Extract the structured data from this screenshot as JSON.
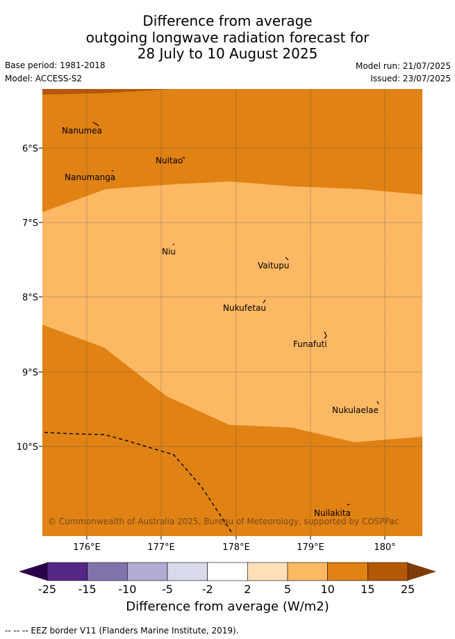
{
  "header": {
    "title_line1": "Difference from average",
    "title_line2": "outgoing longwave radiation forecast for",
    "title_line3": "28 July to 10 August 2025",
    "base_period": "Base period: 1981-2018",
    "model": "Model: ACCESS-S2",
    "model_run": "Model run: 21/07/2025",
    "issued": "Issued: 23/07/2025"
  },
  "map": {
    "lat_labels": [
      "6°S",
      "7°S",
      "8°S",
      "9°S",
      "10°S"
    ],
    "lon_labels": [
      "176°E",
      "177°E",
      "178°E",
      "179°E",
      "180°"
    ],
    "places": [
      "Nanumea",
      "Nuitao",
      "Nanumanga",
      "Niu",
      "Vaitupu",
      "Nukufetau",
      "Funafuti",
      "Nukulaelae",
      "Nuilakita"
    ],
    "copyright": "© Commonwealth of Australia 2025, Bureau of Meteorology, supported by COSPPac",
    "colors": {
      "band_10_15": "#e08214",
      "band_5_10": "#fdb863",
      "band_15_25": "#b35806"
    }
  },
  "colorbar": {
    "ticks": [
      "-25",
      "-15",
      "-10",
      "-5",
      "-2",
      "2",
      "5",
      "10",
      "15",
      "25"
    ],
    "colors": [
      "#542788",
      "#8073ac",
      "#b2abd2",
      "#d8daeb",
      "#ffffff",
      "#fee0b6",
      "#fdb863",
      "#e08214",
      "#b35806"
    ],
    "low_extend_color": "#2d004b",
    "high_extend_color": "#7f3b08",
    "title": "Difference from average (W/m2)"
  },
  "footnote": "-- -- -- EEZ border V11 (Flanders Marine Institute, 2019)."
}
